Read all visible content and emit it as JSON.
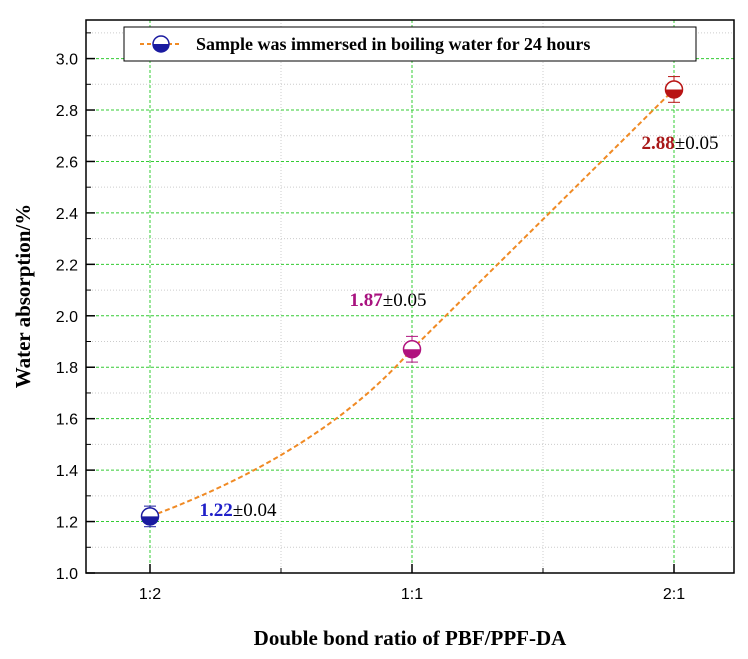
{
  "chart_data": {
    "type": "line",
    "xlabel": "Double bond ratio of PBF/PPF-DA",
    "ylabel": "Water absorption/%",
    "categories": [
      "1:2",
      "1:1",
      "2:1"
    ],
    "ylim": [
      1.0,
      3.15
    ],
    "y_major_ticks": [
      "1.0",
      "1.2",
      "1.4",
      "1.6",
      "1.8",
      "2.0",
      "2.2",
      "2.4",
      "2.6",
      "2.8",
      "3.0"
    ],
    "grid": true,
    "legend": {
      "position": "top-center",
      "entries": [
        "Sample was immersed in boiling water for 24 hours"
      ]
    },
    "series": [
      {
        "name": "Sample was immersed in boiling water for 24 hours",
        "line_color": "#f08a24",
        "line_style": "dashed",
        "points": [
          {
            "x": "1:2",
            "y": 1.22,
            "err": 0.04,
            "label_value": "1.22",
            "label_err": "±0.04",
            "color": "#1a1aa0"
          },
          {
            "x": "1:1",
            "y": 1.87,
            "err": 0.05,
            "label_value": "1.87",
            "label_err": "±0.05",
            "color": "#b0137e"
          },
          {
            "x": "2:1",
            "y": 2.88,
            "err": 0.05,
            "label_value": "2.88",
            "label_err": "±0.05",
            "color": "#b81414"
          }
        ]
      }
    ],
    "colors": {
      "grid_major": "#33cc33",
      "grid_minor": "#cccccc",
      "axis": "#000000",
      "label_blue": "#2020c8",
      "label_magenta": "#a8127f",
      "label_red": "#a81818"
    }
  }
}
